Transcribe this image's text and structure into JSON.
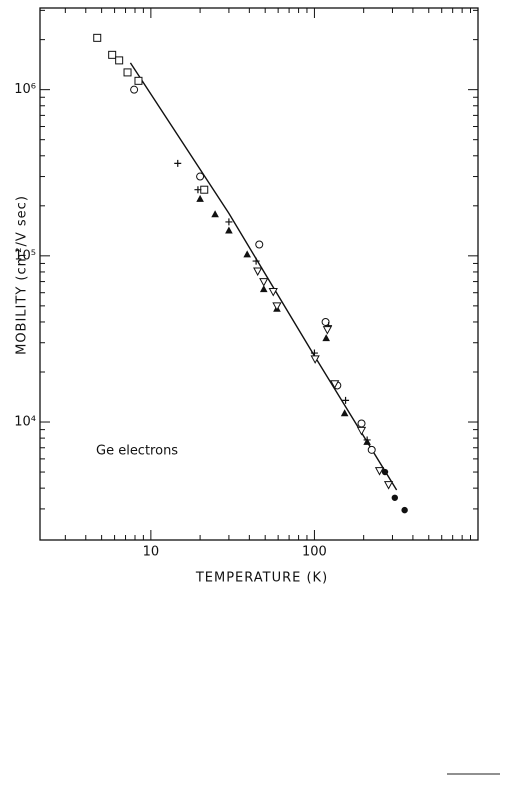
{
  "chart_data": {
    "type": "scatter",
    "x_label": "TEMPERATURE (K)",
    "y_label": "MOBILITY (cm²/V sec)",
    "annotation": "Ge electrons",
    "xlog": true,
    "ylog": true,
    "xlim": [
      2.1,
      1000
    ],
    "ylim": [
      1950,
      3100000
    ],
    "xticks": [
      10,
      100
    ],
    "yticks": [
      {
        "value": 10000,
        "label": "10⁴"
      },
      {
        "value": 100000,
        "label": "10⁵"
      },
      {
        "value": 1000000,
        "label": "10⁶"
      }
    ],
    "xminorticks": [
      3,
      4,
      5,
      6,
      7,
      8,
      9,
      20,
      30,
      40,
      50,
      60,
      70,
      80,
      90,
      200,
      300,
      400,
      500,
      600,
      700,
      800,
      900
    ],
    "yminorticks": [
      3000,
      4000,
      5000,
      6000,
      7000,
      8000,
      9000,
      20000,
      30000,
      40000,
      50000,
      60000,
      70000,
      80000,
      90000,
      200000,
      300000,
      400000,
      500000,
      600000,
      700000,
      800000,
      900000,
      2000000,
      3000000
    ],
    "line": {
      "color": "#111",
      "x": [
        7.5,
        30,
        100,
        318
      ],
      "values": [
        1450000,
        180000,
        25000,
        3900
      ]
    },
    "series": [
      {
        "marker": "square-open",
        "color": "#111",
        "x": [
          4.7,
          5.8,
          6.4,
          7.2,
          8.4,
          21.2
        ],
        "values": [
          2050000,
          1620000,
          1500000,
          1270000,
          1130000,
          250000
        ]
      },
      {
        "marker": "circle-open",
        "color": "#111",
        "x": [
          7.9,
          20,
          46,
          117,
          138,
          194,
          224
        ],
        "values": [
          1000000,
          300000,
          117000,
          40000,
          16600,
          9800,
          6800
        ]
      },
      {
        "marker": "plus",
        "color": "#111",
        "x": [
          14.6,
          19.4,
          30,
          44,
          122,
          100,
          155,
          210
        ],
        "values": [
          360000,
          250000,
          160000,
          93000,
          38000,
          26000,
          13500,
          7800
        ]
      },
      {
        "marker": "triangle-filled",
        "color": "#111",
        "x": [
          20,
          24.7,
          30,
          38.8,
          49,
          59,
          118,
          153,
          210
        ],
        "values": [
          220000,
          178000,
          142000,
          102000,
          63000,
          48000,
          32000,
          11300,
          7600
        ]
      },
      {
        "marker": "triangle-down-open",
        "color": "#111",
        "x": [
          45,
          49,
          56,
          59,
          120,
          101,
          133,
          194,
          250,
          284
        ],
        "values": [
          81000,
          70000,
          61000,
          50000,
          36000,
          24000,
          17000,
          8900,
          5100,
          4200
        ]
      },
      {
        "marker": "circle-filled",
        "color": "#111",
        "x": [
          270,
          310,
          356
        ],
        "values": [
          5000,
          3500,
          2950
        ]
      }
    ]
  }
}
